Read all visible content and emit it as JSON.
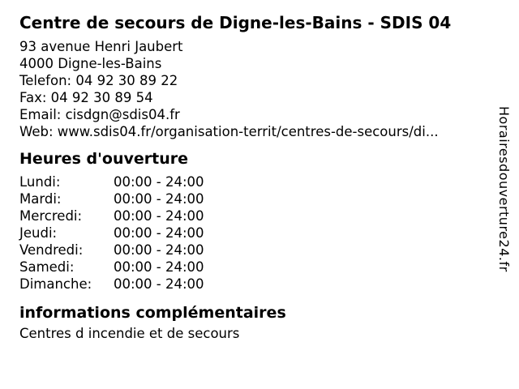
{
  "title": "Centre de secours de Digne-les-Bains - SDIS 04",
  "contact": {
    "address_line1": "93 avenue Henri Jaubert",
    "address_line2": "4000 Digne-les-Bains",
    "phone": "Telefon: 04 92 30 89 22",
    "fax": "Fax: 04 92 30 89 54",
    "email": "Email: cisdgn@sdis04.fr",
    "web": "Web: www.sdis04.fr/organisation-territ/centres-de-secours/di..."
  },
  "hours": {
    "heading": "Heures d'ouverture",
    "rows": [
      {
        "day": "Lundi:",
        "hours": "00:00 - 24:00"
      },
      {
        "day": "Mardi:",
        "hours": "00:00 - 24:00"
      },
      {
        "day": "Mercredi:",
        "hours": "00:00 - 24:00"
      },
      {
        "day": "Jeudi:",
        "hours": "00:00 - 24:00"
      },
      {
        "day": "Vendredi:",
        "hours": "00:00 - 24:00"
      },
      {
        "day": "Samedi:",
        "hours": "00:00 - 24:00"
      },
      {
        "day": "Dimanche:",
        "hours": "00:00 - 24:00"
      }
    ]
  },
  "info": {
    "heading": "informations complémentaires",
    "text": "Centres d incendie et de secours"
  },
  "branding": "Horairesdouverture24.fr",
  "colors": {
    "text": "#000000",
    "background": "#ffffff"
  }
}
